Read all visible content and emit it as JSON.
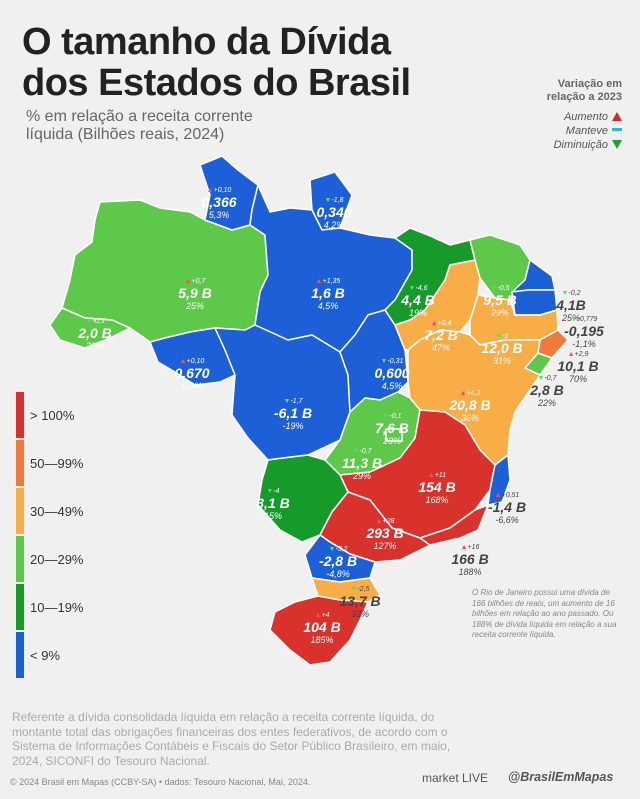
{
  "title": "O tamanho da Dívida dos Estados do Brasil",
  "subtitle": "% em relação a receita corrente líquida (Bilhões reais, 2024)",
  "variation_legend": {
    "title": "Variação em relação a 2023",
    "increase": "Aumento",
    "same": "Manteve",
    "decrease": "Diminuição"
  },
  "scale": [
    {
      "label": "> 100%",
      "color": "#d9312b"
    },
    {
      "label": "50—99%",
      "color": "#f07a3c"
    },
    {
      "label": "30—49%",
      "color": "#f8ad47"
    },
    {
      "label": "20—29%",
      "color": "#5ec84a"
    },
    {
      "label": "10—19%",
      "color": "#169a2a"
    },
    {
      "label": "< 9%",
      "color": "#1c5fd6"
    }
  ],
  "states": {
    "rr": {
      "value": "0,366",
      "pct": "5,3%",
      "change": "+0,10",
      "dir": "up"
    },
    "ap": {
      "value": "0,340",
      "pct": "4,2%",
      "change": "-1,8",
      "dir": "down"
    },
    "am": {
      "value": "5,9 B",
      "pct": "25%",
      "change": "+0,7",
      "dir": "up"
    },
    "pa": {
      "value": "1,6 B",
      "pct": "4,5%",
      "change": "+1,35",
      "dir": "up"
    },
    "ma": {
      "value": "4,4 B",
      "pct": "19%",
      "change": "-4,6",
      "dir": "down"
    },
    "ce": {
      "value": "9,5 B",
      "pct": "29%",
      "change": "-0,5",
      "dir": "down"
    },
    "rn": {
      "value": "4,1B",
      "pct": "25%",
      "change": "-0,2",
      "dir": "down"
    },
    "pb": {
      "value": "-0,195",
      "pct": "-1,1%",
      "change": "-0,779",
      "dir": "down"
    },
    "pi": {
      "value": "7,2 B",
      "pct": "47%",
      "change": "+0,4",
      "dir": "up"
    },
    "pe": {
      "value": "12,0 B",
      "pct": "31%",
      "change": "-1",
      "dir": "down"
    },
    "al": {
      "value": "10,1 B",
      "pct": "70%",
      "change": "+2,9",
      "dir": "up"
    },
    "se": {
      "value": "2,8 B",
      "pct": "22%",
      "change": "-0,7",
      "dir": "down"
    },
    "ac": {
      "value": "2,0 B",
      "pct": "23%",
      "change": "-0,5",
      "dir": "down"
    },
    "ro": {
      "value": "0,670",
      "pct": "5,3%",
      "change": "+0,10",
      "dir": "up"
    },
    "mt": {
      "value": "-6,1 B",
      "pct": "-19%",
      "change": "-1,7",
      "dir": "down"
    },
    "to": {
      "value": "0,600",
      "pct": "4,5%",
      "change": "-0,31",
      "dir": "down"
    },
    "ba": {
      "value": "20,8 B",
      "pct": "36%",
      "change": "+4,2",
      "dir": "up"
    },
    "df": {
      "value": "7,6 B",
      "pct": "23%",
      "change": "-0,1",
      "dir": "down"
    },
    "go": {
      "value": "11,3 B",
      "pct": "29%",
      "change": "-0,7",
      "dir": "down"
    },
    "mg": {
      "value": "154 B",
      "pct": "168%",
      "change": "+11",
      "dir": "up"
    },
    "ms": {
      "value": "3,1 B",
      "pct": "15%",
      "change": "-4",
      "dir": "down"
    },
    "es": {
      "value": "-1,4 B",
      "pct": "-6,6%",
      "change": "+0,51",
      "dir": "up"
    },
    "sp": {
      "value": "293 B",
      "pct": "127%",
      "change": "+28",
      "dir": "up"
    },
    "rj": {
      "value": "166 B",
      "pct": "188%",
      "change": "+16",
      "dir": "up"
    },
    "pr": {
      "value": "-2,8 B",
      "pct": "-4,8%",
      "change": "-3,2",
      "dir": "down"
    },
    "sc": {
      "value": "13,7 B",
      "pct": "33%",
      "change": "-2,5",
      "dir": "down"
    },
    "rs": {
      "value": "104 B",
      "pct": "185%",
      "change": "+4",
      "dir": "up"
    }
  },
  "rj_note": "O Rio de Janeiro possui uma dívida de 166 bilhões de reais, um aumento de 16 bilhões em relação ao ano passado. Ou 188% de dívida líquida em relação a sua receita corrente líquida.",
  "footnote": "Referente a dívida consolidada líquida em relação a receita corrente líquida, do montante total das obrigações financeiras dos entes federativos, de acordo com o Sistema de Informações Contábeis e Fiscais do Setor Público Brasileiro, em maio, 2024, SICONFI do Tesouro Nacional.",
  "copyright": "© 2024 Brasil em Mapas (CCBY-SA)  •  dados: Tesouro Nacional, Mai, 2024.",
  "marketlive": "market LIVE",
  "handle": "@BrasilEmMapas"
}
